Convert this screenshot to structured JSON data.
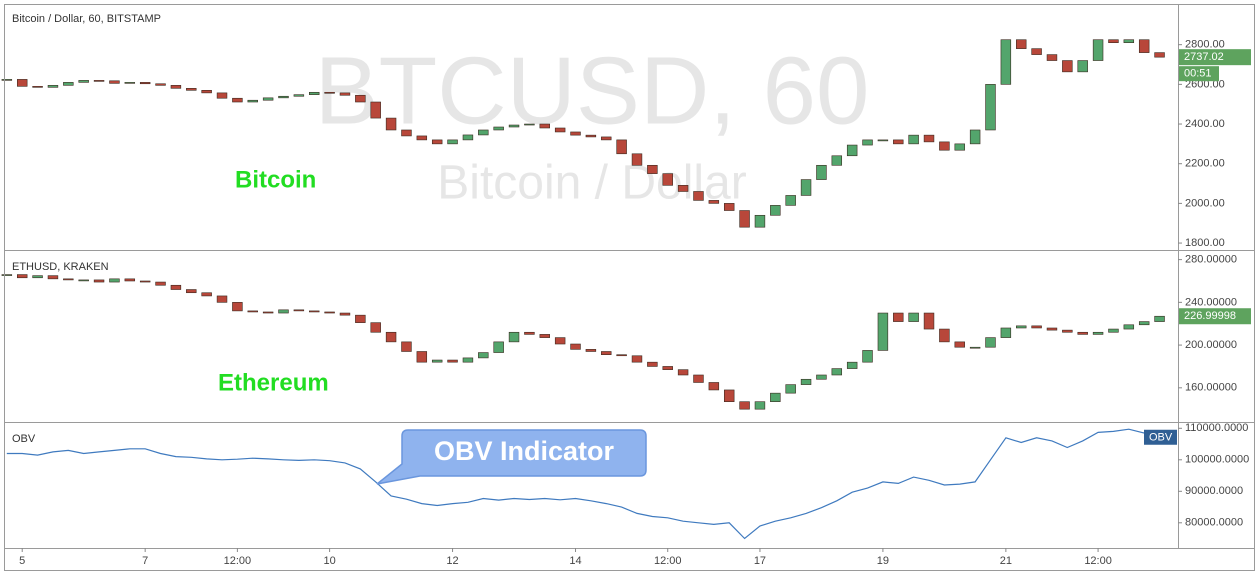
{
  "chart_data": [
    {
      "type": "candlestick",
      "title": "Bitcoin / Dollar, 60, BITSTAMP",
      "watermark": "BTCUSD, 60",
      "watermark_subtitle": "Bitcoin / Dollar",
      "annotation": "Bitcoin",
      "x": [
        -0.25,
        0,
        0.25,
        0.5,
        0.75,
        1,
        1.25,
        1.5,
        1.75,
        2,
        2.25,
        2.5,
        2.75,
        3,
        3.25,
        3.5,
        3.75,
        4,
        4.25,
        4.5,
        4.75,
        5,
        5.25,
        5.5,
        5.75,
        6,
        6.25,
        6.5,
        6.75,
        7,
        7.25,
        7.5,
        7.75,
        8,
        8.25,
        8.5,
        8.75,
        9,
        9.25,
        9.5,
        9.75,
        10,
        10.25,
        10.5,
        10.75,
        11,
        11.25,
        11.5,
        11.75,
        12,
        12.25,
        12.5,
        12.75,
        13,
        13.25,
        13.5,
        13.75,
        14,
        14.25,
        14.5,
        14.75,
        15,
        15.25,
        15.5,
        15.75,
        16,
        16.25,
        16.5,
        16.75,
        17,
        17.25,
        17.5,
        17.75,
        18,
        18.25,
        18.5
      ],
      "values": [
        2625,
        2590,
        2585,
        2595,
        2610,
        2620,
        2618,
        2605,
        2610,
        2603,
        2595,
        2580,
        2570,
        2557,
        2530,
        2511,
        2520,
        2532,
        2540,
        2548,
        2560,
        2557,
        2545,
        2511,
        2430,
        2370,
        2340,
        2320,
        2300,
        2320,
        2345,
        2370,
        2385,
        2395,
        2400,
        2380,
        2360,
        2344,
        2335,
        2320,
        2250,
        2192,
        2150,
        2091,
        2060,
        2015,
        2000,
        1964,
        1880,
        1940,
        1990,
        2040,
        2120,
        2192,
        2240,
        2294,
        2320,
        2320,
        2300,
        2344,
        2310,
        2268,
        2300,
        2370,
        2600,
        2825,
        2780,
        2750,
        2720,
        2663,
        2720,
        2825,
        2810,
        2825,
        2760,
        2737.02
      ],
      "up_color": "#53a56c",
      "down_color": "#b8473a",
      "ylim": [
        1765,
        3000
      ],
      "yticks": [
        {
          "value": 1800,
          "label": "1800.00"
        },
        {
          "value": 2000,
          "label": "2000.00"
        },
        {
          "value": 2200,
          "label": "2200.00"
        },
        {
          "value": 2400,
          "label": "2400.00"
        },
        {
          "value": 2600,
          "label": "2600.00"
        },
        {
          "value": 2800,
          "label": "2800.00"
        }
      ],
      "last_price": 2737.02,
      "countdown": "00:51",
      "price_color": "#5ea35e"
    },
    {
      "type": "candlestick",
      "title": "ETHUSD, KRAKEN",
      "annotation": "Ethereum",
      "x": [
        -0.25,
        0,
        0.25,
        0.5,
        0.75,
        1,
        1.25,
        1.5,
        1.75,
        2,
        2.25,
        2.5,
        2.75,
        3,
        3.25,
        3.5,
        3.75,
        4,
        4.25,
        4.5,
        4.75,
        5,
        5.25,
        5.5,
        5.75,
        6,
        6.25,
        6.5,
        6.75,
        7,
        7.25,
        7.5,
        7.75,
        8,
        8.25,
        8.5,
        8.75,
        9,
        9.25,
        9.5,
        9.75,
        10,
        10.25,
        10.5,
        10.75,
        11,
        11.25,
        11.5,
        11.75,
        12,
        12.25,
        12.5,
        12.75,
        13,
        13.25,
        13.5,
        13.75,
        14,
        14.25,
        14.5,
        14.75,
        15,
        15.25,
        15.5,
        15.75,
        16,
        16.25,
        16.5,
        16.75,
        17,
        17.25,
        17.5,
        17.75,
        18,
        18.25,
        18.5
      ],
      "values": [
        266,
        263,
        265,
        262,
        261,
        261,
        259,
        262,
        260,
        259,
        256,
        252,
        249,
        246,
        240,
        232,
        231,
        230,
        233,
        232,
        231,
        230,
        228,
        221,
        212,
        203,
        194,
        184,
        186,
        184,
        188,
        193,
        203,
        212,
        210,
        207,
        201,
        196,
        194,
        191,
        190,
        184,
        180,
        177,
        172,
        165,
        158,
        147,
        140,
        147,
        155,
        163,
        168,
        172,
        178,
        184,
        195,
        230,
        222,
        230,
        215,
        203,
        198,
        198,
        207,
        216,
        218,
        216,
        214,
        212,
        210,
        212,
        215,
        219,
        222,
        226.99998
      ],
      "up_color": "#53a56c",
      "down_color": "#b8473a",
      "ylim": [
        128,
        289
      ],
      "yticks": [
        {
          "value": 160,
          "label": "160.00000"
        },
        {
          "value": 200,
          "label": "200.00000"
        },
        {
          "value": 240,
          "label": "240.00000"
        },
        {
          "value": 280,
          "label": "280.00000"
        }
      ],
      "last_price": 226.99998,
      "price_color": "#5ea35e"
    },
    {
      "type": "line",
      "title": "OBV",
      "annotation": "OBV Indicator",
      "color": "#3f7abf",
      "tag_color": "#2f5f94",
      "x": [
        -0.25,
        0,
        0.25,
        0.5,
        0.75,
        1,
        1.25,
        1.5,
        1.75,
        2,
        2.25,
        2.5,
        2.75,
        3,
        3.25,
        3.5,
        3.75,
        4,
        4.25,
        4.5,
        4.75,
        5,
        5.25,
        5.5,
        5.75,
        6,
        6.25,
        6.5,
        6.75,
        7,
        7.25,
        7.5,
        7.75,
        8,
        8.25,
        8.5,
        8.75,
        9,
        9.25,
        9.5,
        9.75,
        10,
        10.25,
        10.5,
        10.75,
        11,
        11.25,
        11.5,
        11.75,
        12,
        12.25,
        12.5,
        12.75,
        13,
        13.25,
        13.5,
        13.75,
        14,
        14.25,
        14.5,
        14.75,
        15,
        15.25,
        15.5,
        15.75,
        16,
        16.25,
        16.5,
        16.75,
        17,
        17.25,
        17.5,
        17.75,
        18,
        18.25,
        18.5
      ],
      "values": [
        102000,
        102000,
        101500,
        102500,
        103000,
        102000,
        102500,
        103000,
        103500,
        103500,
        102000,
        101000,
        100800,
        100300,
        100000,
        100200,
        100500,
        100300,
        100000,
        99800,
        100000,
        99700,
        99000,
        97100,
        93000,
        88500,
        87500,
        86100,
        85500,
        86100,
        86500,
        87700,
        87200,
        87700,
        87400,
        87700,
        87300,
        87700,
        87000,
        86100,
        85000,
        83000,
        82000,
        81600,
        80500,
        80000,
        79500,
        80000,
        75000,
        79000,
        80500,
        81600,
        83000,
        84800,
        87000,
        89700,
        91000,
        93000,
        92500,
        94500,
        93500,
        92000,
        92300,
        93000,
        100000,
        107000,
        105500,
        107000,
        106000,
        103900,
        106000,
        108700,
        109000,
        109700,
        108500,
        107000
      ],
      "ylim": [
        72000,
        112000
      ],
      "yticks": [
        {
          "value": 80000,
          "label": "80000.0000"
        },
        {
          "value": 90000,
          "label": "90000.0000"
        },
        {
          "value": 100000,
          "label": "100000.0000"
        },
        {
          "value": 110000,
          "label": "110000.0000"
        }
      ],
      "xlim": [
        -0.28,
        18.8
      ],
      "xticks": [
        {
          "value": 0,
          "label": "5"
        },
        {
          "value": 2,
          "label": "7"
        },
        {
          "value": 3.5,
          "label": "12:00"
        },
        {
          "value": 5,
          "label": "10"
        },
        {
          "value": 7,
          "label": "12"
        },
        {
          "value": 9,
          "label": "14"
        },
        {
          "value": 10.5,
          "label": "12:00"
        },
        {
          "value": 12,
          "label": "17"
        },
        {
          "value": 14,
          "label": "19"
        },
        {
          "value": 16,
          "label": "21"
        },
        {
          "value": 17.5,
          "label": "12:00"
        }
      ]
    }
  ]
}
